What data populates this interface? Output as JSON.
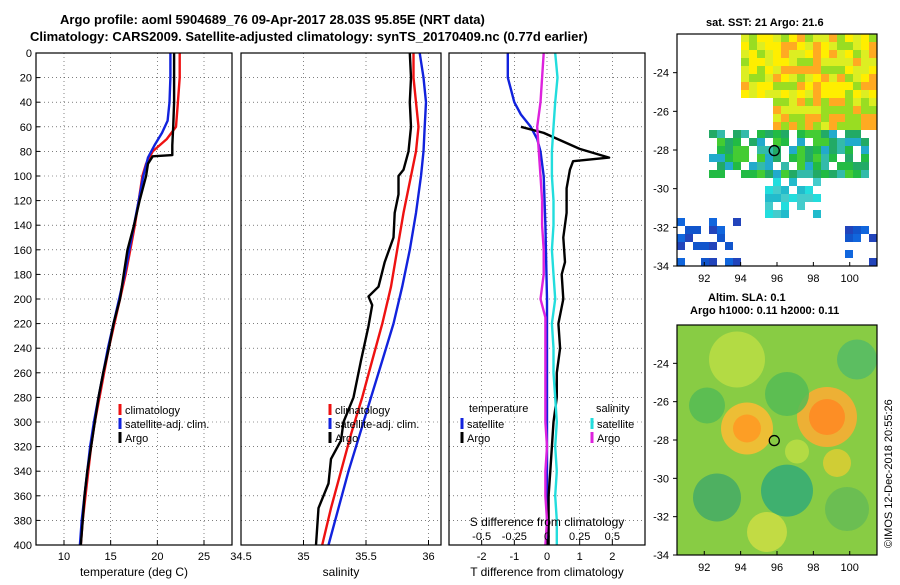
{
  "header": {
    "title_line1": "Argo profile: aoml 5904689_76 09-Apr-2017 28.03S 95.85E (NRT data)",
    "title_line2": "Climatology: CARS2009. Satellite-adjusted climatology: synTS_20170409.nc (0.77d earlier)"
  },
  "credit": "©IMOS 12-Dec-2018 20:55:26",
  "depth_ticks": [
    0,
    20,
    40,
    60,
    80,
    100,
    120,
    140,
    160,
    180,
    200,
    220,
    240,
    260,
    280,
    300,
    320,
    340,
    360,
    380,
    400
  ],
  "colors": {
    "climatology": "#ee1111",
    "satellite": "#1122dd",
    "argo": "#000000",
    "cyan": "#22dddd",
    "magenta": "#dd22dd"
  },
  "chart_data": [
    {
      "type": "line",
      "name": "temperature",
      "xlabel": "temperature (deg C)",
      "ylabel": "depth",
      "xlim": [
        7,
        28
      ],
      "ylim": [
        400,
        0
      ],
      "xticks": [
        10,
        15,
        20,
        25
      ],
      "legend": [
        "climatology",
        "satellite-adj. clim.",
        "Argo"
      ],
      "series": [
        {
          "name": "climatology",
          "color": "#ee1111",
          "points": [
            [
              22.4,
              0
            ],
            [
              22.4,
              20
            ],
            [
              22.2,
              40
            ],
            [
              22.0,
              60
            ],
            [
              21.0,
              70
            ],
            [
              19.5,
              80
            ],
            [
              18.8,
              90
            ],
            [
              18.4,
              100
            ],
            [
              18.0,
              120
            ],
            [
              17.6,
              140
            ],
            [
              17.1,
              160
            ],
            [
              16.6,
              180
            ],
            [
              16.0,
              200
            ],
            [
              15.4,
              220
            ],
            [
              14.8,
              240
            ],
            [
              14.3,
              260
            ],
            [
              13.8,
              280
            ],
            [
              13.3,
              300
            ],
            [
              12.9,
              320
            ],
            [
              12.6,
              340
            ],
            [
              12.3,
              360
            ],
            [
              12.0,
              380
            ],
            [
              11.8,
              400
            ]
          ]
        },
        {
          "name": "satellite-adj. clim.",
          "color": "#1122dd",
          "points": [
            [
              21.4,
              0
            ],
            [
              21.4,
              20
            ],
            [
              21.3,
              40
            ],
            [
              21.1,
              55
            ],
            [
              20.5,
              65
            ],
            [
              19.7,
              75
            ],
            [
              19.0,
              85
            ],
            [
              18.5,
              100
            ],
            [
              18.0,
              120
            ],
            [
              17.5,
              140
            ],
            [
              17.0,
              160
            ],
            [
              16.5,
              180
            ],
            [
              15.9,
              200
            ],
            [
              15.3,
              220
            ],
            [
              14.7,
              240
            ],
            [
              14.2,
              260
            ],
            [
              13.7,
              280
            ],
            [
              13.2,
              300
            ],
            [
              12.8,
              320
            ],
            [
              12.5,
              340
            ],
            [
              12.2,
              360
            ],
            [
              11.9,
              380
            ],
            [
              11.7,
              400
            ]
          ]
        },
        {
          "name": "Argo",
          "color": "#000000",
          "points": [
            [
              21.8,
              0
            ],
            [
              21.8,
              20
            ],
            [
              21.8,
              40
            ],
            [
              21.7,
              60
            ],
            [
              21.6,
              75
            ],
            [
              21.6,
              83
            ],
            [
              19.5,
              84
            ],
            [
              19.0,
              90
            ],
            [
              18.8,
              100
            ],
            [
              18.1,
              120
            ],
            [
              17.5,
              140
            ],
            [
              16.8,
              160
            ],
            [
              16.4,
              180
            ],
            [
              16.0,
              200
            ],
            [
              15.3,
              220
            ],
            [
              14.8,
              240
            ],
            [
              14.2,
              260
            ],
            [
              13.7,
              280
            ],
            [
              13.3,
              300
            ],
            [
              12.9,
              320
            ],
            [
              12.5,
              340
            ],
            [
              12.2,
              360
            ],
            [
              12.0,
              380
            ],
            [
              11.8,
              400
            ]
          ]
        }
      ]
    },
    {
      "type": "line",
      "name": "salinity",
      "xlabel": "salinity",
      "ylabel": "depth",
      "xlim": [
        34.5,
        36.1
      ],
      "ylim": [
        400,
        0
      ],
      "xticks": [
        34.5,
        35,
        35.5,
        36
      ],
      "legend": [
        "climatology",
        "satellite-adj. clim.",
        "Argo"
      ],
      "series": [
        {
          "name": "climatology",
          "color": "#ee1111",
          "points": [
            [
              35.88,
              0
            ],
            [
              35.88,
              20
            ],
            [
              35.9,
              40
            ],
            [
              35.92,
              60
            ],
            [
              35.9,
              80
            ],
            [
              35.86,
              100
            ],
            [
              35.8,
              130
            ],
            [
              35.75,
              160
            ],
            [
              35.7,
              190
            ],
            [
              35.63,
              220
            ],
            [
              35.55,
              250
            ],
            [
              35.47,
              280
            ],
            [
              35.38,
              310
            ],
            [
              35.3,
              340
            ],
            [
              35.22,
              370
            ],
            [
              35.15,
              400
            ]
          ]
        },
        {
          "name": "satellite-adj. clim.",
          "color": "#1122dd",
          "points": [
            [
              35.93,
              0
            ],
            [
              35.96,
              20
            ],
            [
              35.98,
              40
            ],
            [
              35.97,
              60
            ],
            [
              35.96,
              80
            ],
            [
              35.94,
              100
            ],
            [
              35.9,
              130
            ],
            [
              35.85,
              160
            ],
            [
              35.79,
              190
            ],
            [
              35.72,
              220
            ],
            [
              35.63,
              250
            ],
            [
              35.54,
              280
            ],
            [
              35.45,
              310
            ],
            [
              35.36,
              340
            ],
            [
              35.28,
              370
            ],
            [
              35.2,
              400
            ]
          ]
        },
        {
          "name": "Argo",
          "color": "#000000",
          "points": [
            [
              35.85,
              0
            ],
            [
              35.86,
              20
            ],
            [
              35.85,
              40
            ],
            [
              35.86,
              60
            ],
            [
              35.84,
              80
            ],
            [
              35.8,
              95
            ],
            [
              35.76,
              100
            ],
            [
              35.76,
              115
            ],
            [
              35.73,
              130
            ],
            [
              35.72,
              150
            ],
            [
              35.65,
              170
            ],
            [
              35.6,
              190
            ],
            [
              35.52,
              198
            ],
            [
              35.55,
              205
            ],
            [
              35.52,
              222
            ],
            [
              35.46,
              250
            ],
            [
              35.4,
              280
            ],
            [
              35.32,
              300
            ],
            [
              35.3,
              315
            ],
            [
              35.22,
              330
            ],
            [
              35.2,
              350
            ],
            [
              35.12,
              370
            ],
            [
              35.1,
              400
            ]
          ]
        }
      ]
    },
    {
      "type": "line",
      "name": "difference from climatology",
      "xlabel": "T difference from climatology",
      "top_label": "S difference from climatology",
      "ylabel": "depth",
      "xlim": [
        -3,
        3
      ],
      "ylim": [
        400,
        0
      ],
      "xticks": [
        -2,
        -1,
        0,
        1,
        2
      ],
      "top_xticks": [
        "-0.5",
        "-0.25",
        "0",
        "0.25",
        "0.5"
      ],
      "legend_temperature": {
        "title": "temperature",
        "items": [
          "satellite",
          "Argo"
        ]
      },
      "legend_salinity": {
        "title": "salinity",
        "items": [
          "satellite",
          "Argo"
        ]
      },
      "series": [
        {
          "name": "T satellite",
          "color": "#1122dd",
          "points": [
            [
              -1.2,
              0
            ],
            [
              -1.2,
              20
            ],
            [
              -1.0,
              40
            ],
            [
              -0.8,
              50
            ],
            [
              -0.5,
              60
            ],
            [
              -0.3,
              70
            ],
            [
              -0.2,
              80
            ],
            [
              -0.1,
              100
            ],
            [
              -0.05,
              140
            ],
            [
              0,
              200
            ],
            [
              0,
              300
            ],
            [
              0,
              400
            ]
          ]
        },
        {
          "name": "T Argo",
          "color": "#000000",
          "points": [
            [
              -0.8,
              60
            ],
            [
              -0.1,
              65
            ],
            [
              1.0,
              78
            ],
            [
              1.9,
              85
            ],
            [
              0.8,
              88
            ],
            [
              0.7,
              95
            ],
            [
              0.6,
              110
            ],
            [
              0.6,
              130
            ],
            [
              0.5,
              150
            ],
            [
              0.55,
              170
            ],
            [
              0.45,
              180
            ],
            [
              0.5,
              200
            ],
            [
              0.35,
              220
            ],
            [
              0.4,
              240
            ],
            [
              0.3,
              260
            ],
            [
              0.3,
              280
            ],
            [
              0.2,
              300
            ],
            [
              0.15,
              320
            ],
            [
              0.1,
              340
            ],
            [
              0.05,
              360
            ],
            [
              0.05,
              380
            ],
            [
              0.05,
              400
            ]
          ]
        },
        {
          "name": "S satellite",
          "color": "#22dddd",
          "points": [
            [
              0.25,
              0
            ],
            [
              0.32,
              20
            ],
            [
              0.25,
              40
            ],
            [
              0.2,
              60
            ],
            [
              0.15,
              80
            ],
            [
              0.15,
              100
            ],
            [
              0.2,
              120
            ],
            [
              0.2,
              140
            ],
            [
              0.15,
              160
            ],
            [
              0.2,
              180
            ],
            [
              0.25,
              200
            ],
            [
              0.15,
              220
            ],
            [
              0.2,
              240
            ],
            [
              0.2,
              260
            ],
            [
              0.25,
              280
            ],
            [
              0.3,
              300
            ],
            [
              0.25,
              320
            ],
            [
              0.3,
              340
            ],
            [
              0.25,
              360
            ],
            [
              0.3,
              380
            ],
            [
              0.3,
              400
            ]
          ]
        },
        {
          "name": "S Argo",
          "color": "#dd22dd",
          "points": [
            [
              -0.1,
              0
            ],
            [
              -0.15,
              20
            ],
            [
              -0.2,
              40
            ],
            [
              -0.3,
              60
            ],
            [
              -0.25,
              80
            ],
            [
              -0.2,
              100
            ],
            [
              -0.15,
              120
            ],
            [
              -0.15,
              140
            ],
            [
              -0.1,
              160
            ],
            [
              -0.1,
              180
            ],
            [
              -0.2,
              200
            ],
            [
              -0.05,
              215
            ],
            [
              -0.05,
              240
            ],
            [
              -0.05,
              260
            ],
            [
              -0.05,
              280
            ],
            [
              -0.05,
              300
            ],
            [
              0,
              320
            ],
            [
              -0.05,
              340
            ],
            [
              -0.05,
              360
            ],
            [
              0,
              380
            ],
            [
              -0.05,
              400
            ]
          ]
        }
      ]
    },
    {
      "type": "heatmap",
      "name": "sst_map",
      "title": "sat. SST: 21 Argo: 21.6",
      "xlim": [
        90.5,
        101.5
      ],
      "ylim": [
        -34,
        -22
      ],
      "xticks": [
        92,
        94,
        96,
        98,
        100
      ],
      "yticks": [
        -24,
        -26,
        -28,
        -30,
        -32,
        -34
      ],
      "float_position": [
        95.85,
        -28.03
      ]
    },
    {
      "type": "heatmap",
      "name": "sla_map",
      "title_line1": "Altim. SLA: 0.1",
      "title_line2": "Argo h1000: 0.11 h2000: 0.11",
      "xlim": [
        90.5,
        101.5
      ],
      "ylim": [
        -34,
        -22
      ],
      "xticks": [
        92,
        94,
        96,
        98,
        100
      ],
      "yticks": [
        -24,
        -26,
        -28,
        -30,
        -32,
        -34
      ],
      "float_position": [
        95.85,
        -28.03
      ]
    }
  ]
}
